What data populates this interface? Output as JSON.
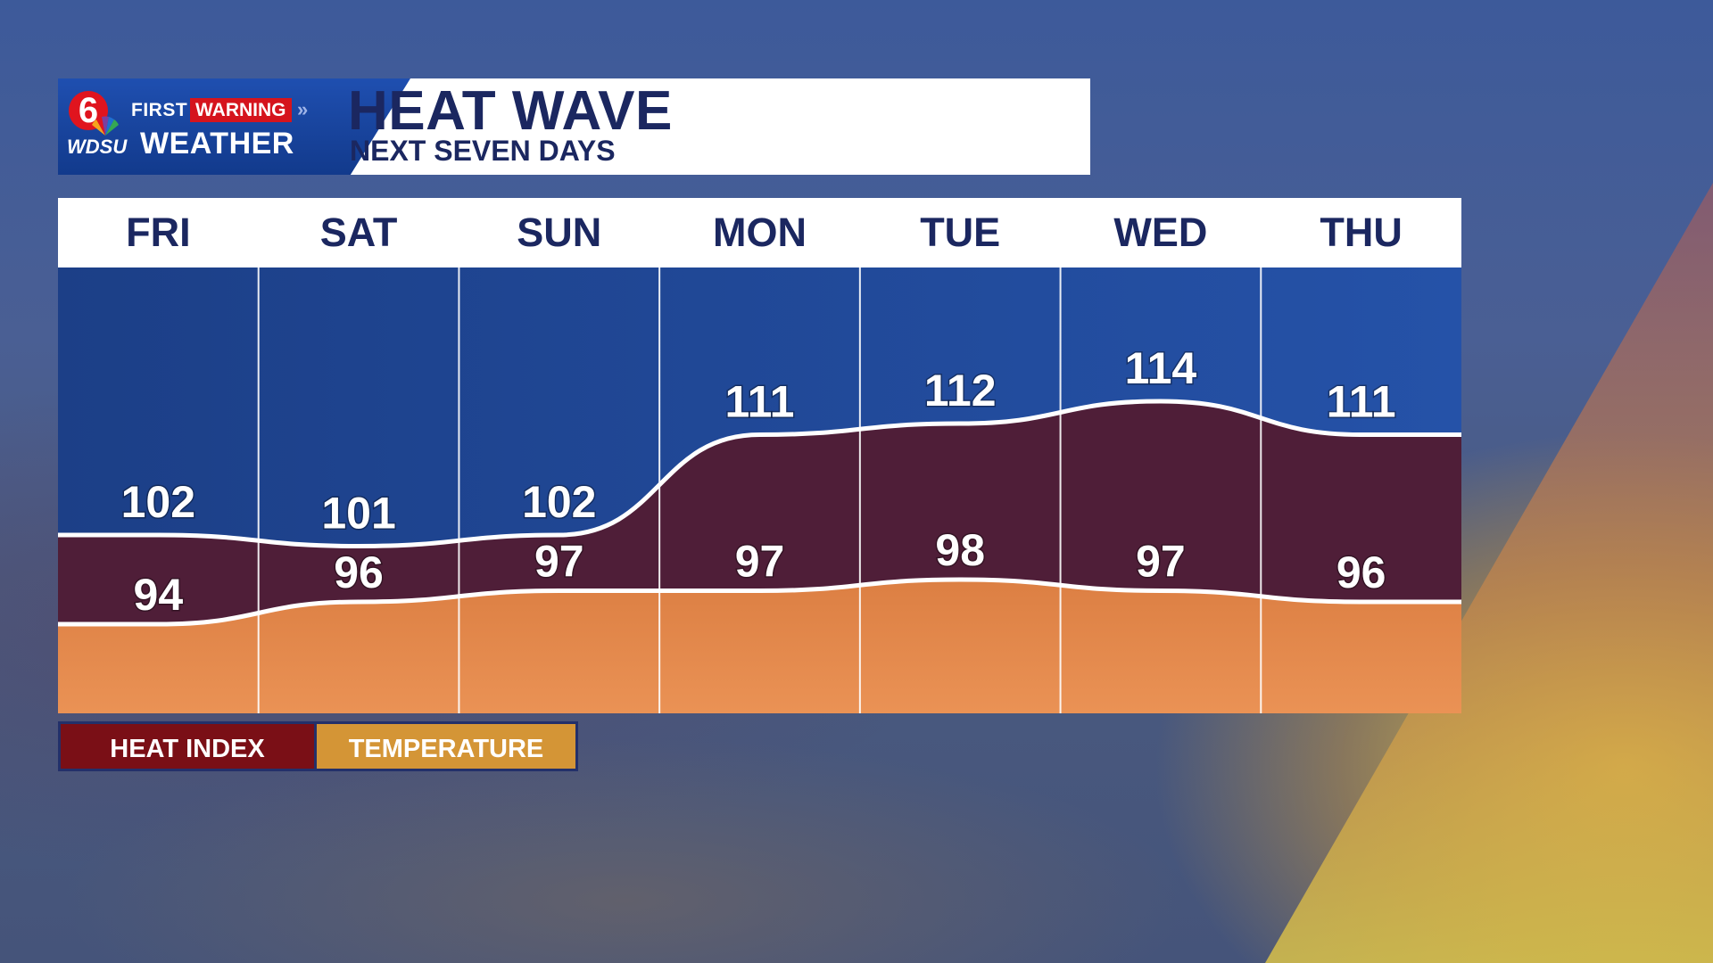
{
  "branding": {
    "station_number": "6",
    "first": "FIRST",
    "warning": "WARNING",
    "chevrons": "»",
    "station": "WDSU",
    "weather": "WEATHER"
  },
  "header": {
    "title": "HEAT WAVE",
    "subtitle": "NEXT SEVEN DAYS"
  },
  "legend": {
    "heat_index": "HEAT INDEX",
    "temperature": "TEMPERATURE"
  },
  "colors": {
    "sky": "#1f4a9c",
    "heat_index_fill": "#4f1e38",
    "temperature_fill": "#e3894a",
    "legend_heat_index": "#7a0f16",
    "legend_temperature": "#d49536",
    "header_text": "#1b2760"
  },
  "chart_data": {
    "type": "area",
    "categories": [
      "FRI",
      "SAT",
      "SUN",
      "MON",
      "TUE",
      "WED",
      "THU"
    ],
    "series": [
      {
        "name": "HEAT INDEX",
        "values": [
          102,
          101,
          102,
          111,
          112,
          114,
          111
        ]
      },
      {
        "name": "TEMPERATURE",
        "values": [
          94,
          96,
          97,
          97,
          98,
          97,
          96
        ]
      }
    ],
    "title": "HEAT WAVE",
    "subtitle": "NEXT SEVEN DAYS",
    "ylim": [
      86,
      126
    ],
    "grid": false,
    "legend": "bottom-left"
  }
}
